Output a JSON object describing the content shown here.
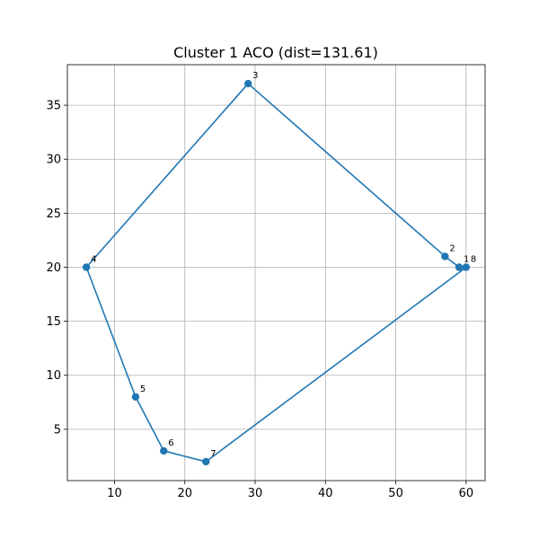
{
  "chart_data": {
    "type": "line",
    "title": "Cluster 1 ACO (dist=131.61)",
    "xlabel": "",
    "ylabel": "",
    "xlim": [
      3.3,
      62.7
    ],
    "ylim": [
      0.25,
      38.75
    ],
    "xticks": [
      10,
      20,
      30,
      40,
      50,
      60
    ],
    "yticks": [
      5,
      10,
      15,
      20,
      25,
      30,
      35
    ],
    "grid": true,
    "legend": "none",
    "color": "#1f77b4",
    "points": [
      {
        "label": "1",
        "x": 59,
        "y": 20
      },
      {
        "label": "2",
        "x": 57,
        "y": 21
      },
      {
        "label": "3",
        "x": 29,
        "y": 37
      },
      {
        "label": "4",
        "x": 6,
        "y": 20
      },
      {
        "label": "5",
        "x": 13,
        "y": 8
      },
      {
        "label": "6",
        "x": 17,
        "y": 3
      },
      {
        "label": "7",
        "x": 23,
        "y": 2
      },
      {
        "label": "8",
        "x": 60,
        "y": 20
      }
    ],
    "route": [
      "1",
      "2",
      "3",
      "4",
      "5",
      "6",
      "7",
      "8",
      "1"
    ]
  }
}
